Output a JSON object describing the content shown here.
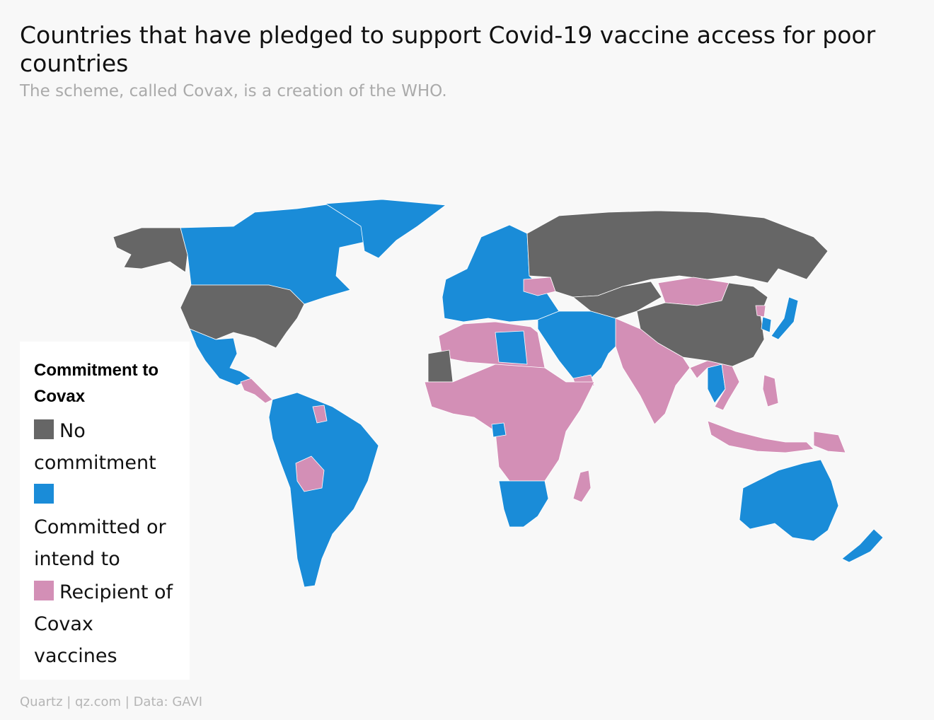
{
  "title": "Countries that have pledged to support Covid-19 vaccine access for poor countries",
  "subtitle": "The scheme, called Covax, is a creation of the WHO.",
  "legend": {
    "title": "Commitment to Covax",
    "items": [
      {
        "label": "No commitment",
        "color": "#666666"
      },
      {
        "label": "Committed or intend to",
        "color": "#1a8cd8"
      },
      {
        "label": "Recipient of Covax vaccines",
        "color": "#d38fb6"
      }
    ]
  },
  "footer": "Quartz | qz.com | Data: GAVI",
  "map_data": {
    "type": "choropleth",
    "categories": [
      "No commitment",
      "Committed or intend to",
      "Recipient of Covax vaccines"
    ],
    "colors": {
      "none": "#666666",
      "committed": "#1a8cd8",
      "recipient": "#d38fb6"
    },
    "regions": [
      {
        "name": "Alaska",
        "status": "none"
      },
      {
        "name": "Canada",
        "status": "committed"
      },
      {
        "name": "Greenland",
        "status": "committed"
      },
      {
        "name": "United States",
        "status": "none"
      },
      {
        "name": "Mexico",
        "status": "committed"
      },
      {
        "name": "Central America",
        "status": "recipient"
      },
      {
        "name": "South America",
        "status": "committed"
      },
      {
        "name": "Bolivia",
        "status": "recipient"
      },
      {
        "name": "Guyana",
        "status": "recipient"
      },
      {
        "name": "Europe",
        "status": "committed"
      },
      {
        "name": "Ukraine",
        "status": "recipient"
      },
      {
        "name": "Russia",
        "status": "none"
      },
      {
        "name": "Central Asia",
        "status": "none"
      },
      {
        "name": "Mongolia",
        "status": "recipient"
      },
      {
        "name": "China",
        "status": "none"
      },
      {
        "name": "Japan",
        "status": "committed"
      },
      {
        "name": "Korea",
        "status": "committed"
      },
      {
        "name": "North Korea",
        "status": "recipient"
      },
      {
        "name": "Middle East",
        "status": "committed"
      },
      {
        "name": "Yemen",
        "status": "recipient"
      },
      {
        "name": "South Asia",
        "status": "recipient"
      },
      {
        "name": "Thailand",
        "status": "committed"
      },
      {
        "name": "Southeast Asia",
        "status": "recipient"
      },
      {
        "name": "Indonesia",
        "status": "recipient"
      },
      {
        "name": "Papua New Guinea",
        "status": "recipient"
      },
      {
        "name": "Australia",
        "status": "committed"
      },
      {
        "name": "New Zealand",
        "status": "committed"
      },
      {
        "name": "North Africa",
        "status": "recipient"
      },
      {
        "name": "Libya",
        "status": "committed"
      },
      {
        "name": "Mauritania",
        "status": "none"
      },
      {
        "name": "Sub-Saharan Africa",
        "status": "recipient"
      },
      {
        "name": "Gabon",
        "status": "committed"
      },
      {
        "name": "Southern Africa",
        "status": "committed"
      },
      {
        "name": "Madagascar",
        "status": "recipient"
      }
    ]
  }
}
